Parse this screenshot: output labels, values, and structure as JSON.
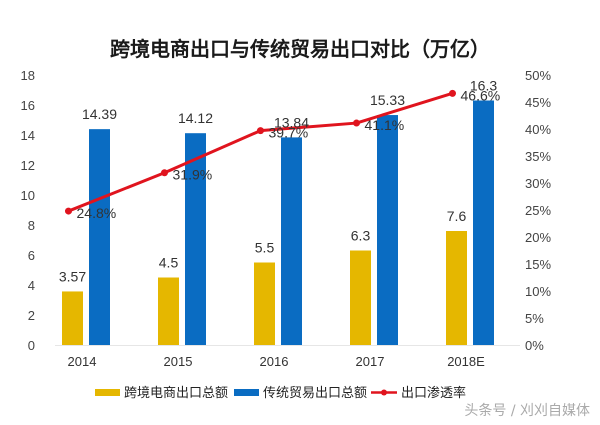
{
  "chart_data": {
    "type": "bar",
    "title": "跨境电商出口与传统贸易出口对比（万亿）",
    "categories": [
      "2014",
      "2015",
      "2016",
      "2017",
      "2018E"
    ],
    "series": [
      {
        "name": "跨境电商出口总额",
        "kind": "bar",
        "axis": "left",
        "color": "#E5B700",
        "values": [
          3.57,
          4.5,
          5.5,
          6.3,
          7.6
        ],
        "labels": [
          "3.57",
          "4.5",
          "5.5",
          "6.3",
          "7.6"
        ]
      },
      {
        "name": "传统贸易出口总额",
        "kind": "bar",
        "axis": "left",
        "color": "#0A6CC2",
        "values": [
          14.39,
          14.12,
          13.84,
          15.33,
          16.3
        ],
        "labels": [
          "14.39",
          "14.12",
          "13.84",
          "15.33",
          "16.3"
        ]
      },
      {
        "name": "出口渗透率",
        "kind": "line",
        "axis": "right",
        "color": "#E0141E",
        "values": [
          24.8,
          31.9,
          39.7,
          41.1,
          46.6
        ],
        "labels": [
          "24.8%",
          "31.9%",
          "39.7%",
          "41.1%",
          "46.6%"
        ]
      }
    ],
    "y_left": {
      "min": 0,
      "max": 18,
      "step": 2,
      "ticks": [
        "0",
        "2",
        "4",
        "6",
        "8",
        "10",
        "12",
        "14",
        "16",
        "18"
      ]
    },
    "y_right": {
      "min": 0,
      "max": 50,
      "step": 5,
      "ticks": [
        "0%",
        "5%",
        "10%",
        "15%",
        "20%",
        "25%",
        "30%",
        "35%",
        "40%",
        "45%",
        "50%"
      ]
    },
    "xlabel": "",
    "ylabel": "",
    "grid": false,
    "legend_position": "bottom"
  },
  "watermark": "头条号 / 刈刈自媒体"
}
